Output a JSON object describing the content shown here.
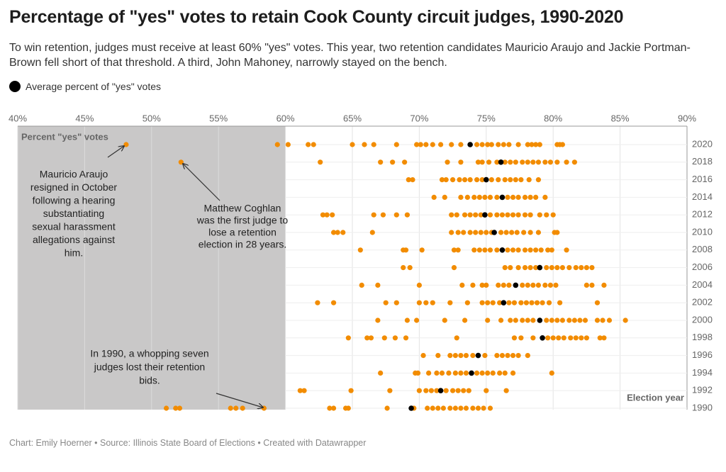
{
  "chart_data": {
    "type": "dot",
    "title": "Percentage of \"yes\" votes to retain Cook County circuit judges, 1990-2020",
    "subtitle": "To win retention, judges must receive at least 60% \"yes\" votes. This year, two retention candidates Mauricio Araujo and Jackie Portman-Brown fell short of that threshold. A third, John Mahoney, narrowly stayed on the bench.",
    "x_label": "Percent \"yes\" votes",
    "y_label": "Election year",
    "source": "Chart: Emily Hoerner • Source: Illinois State Board of Elections • Created with Datawrapper",
    "xlim": [
      40,
      90
    ],
    "xticks": [
      {
        "value": 40,
        "label": "40%"
      },
      {
        "value": 45,
        "label": "45%"
      },
      {
        "value": 50,
        "label": "50%"
      },
      {
        "value": 55,
        "label": "55%"
      },
      {
        "value": 60,
        "label": "60%"
      },
      {
        "value": 65,
        "label": "65%"
      },
      {
        "value": 70,
        "label": "70%"
      },
      {
        "value": 75,
        "label": "75%"
      },
      {
        "value": 80,
        "label": "80%"
      },
      {
        "value": 85,
        "label": "85%"
      },
      {
        "value": 90,
        "label": "90%"
      }
    ],
    "threshold_shading": [
      40,
      60
    ],
    "shade_color": "#c9c8c8",
    "grid": true,
    "legend": "top-left",
    "categories": [
      "2020",
      "2018",
      "2016",
      "2014",
      "2012",
      "2010",
      "2008",
      "2006",
      "2004",
      "2002",
      "2000",
      "1998",
      "1996",
      "1994",
      "1992",
      "1990"
    ],
    "series": [
      {
        "color": "#f28c00",
        "values": [
          [
            48.1,
            59.4,
            60.2,
            61.7,
            62.1,
            65.0,
            65.9,
            66.6,
            68.3,
            69.8,
            70.1,
            70.5,
            71.0,
            71.6,
            72.4,
            73.1,
            74.3,
            74.7,
            75.1,
            75.4,
            75.9,
            76.3,
            76.7,
            77.4,
            78.1,
            78.4,
            78.7,
            79.0,
            80.3,
            80.5,
            80.7
          ],
          [
            52.2,
            62.6,
            67.1,
            68.0,
            68.9,
            72.1,
            73.1,
            74.4,
            74.7,
            75.2,
            75.8,
            76.4,
            76.8,
            77.2,
            77.7,
            78.1,
            78.5,
            78.9,
            79.4,
            79.8,
            80.3,
            81.0,
            81.6
          ],
          [
            69.2,
            69.5,
            71.7,
            72.0,
            72.5,
            73.0,
            73.4,
            73.8,
            74.3,
            74.7,
            75.4,
            75.9,
            76.4,
            76.8,
            77.2,
            77.6,
            78.2,
            78.9
          ],
          [
            71.1,
            71.9,
            73.1,
            73.6,
            74.1,
            74.5,
            74.9,
            75.3,
            75.8,
            76.6,
            77.0,
            77.4,
            77.9,
            78.3,
            78.7,
            79.4
          ],
          [
            62.8,
            63.1,
            63.5,
            66.6,
            67.3,
            68.3,
            69.1,
            72.4,
            72.8,
            73.4,
            73.8,
            74.2,
            74.6,
            75.3,
            75.8,
            76.2,
            76.6,
            77.0,
            77.4,
            77.9,
            78.3,
            79.0,
            79.5,
            80.0
          ],
          [
            63.6,
            63.9,
            64.3,
            66.5,
            72.4,
            72.9,
            73.3,
            73.8,
            74.2,
            74.6,
            75.0,
            75.4,
            76.1,
            76.5,
            76.9,
            77.3,
            77.8,
            78.3,
            78.9,
            80.1,
            80.3
          ],
          [
            65.6,
            68.8,
            69.0,
            70.2,
            72.6,
            72.9,
            74.1,
            74.5,
            74.9,
            75.3,
            75.8,
            76.6,
            77.0,
            77.4,
            77.9,
            78.3,
            78.7,
            79.1,
            79.6,
            79.9,
            81.0
          ],
          [
            68.8,
            69.3,
            72.6,
            76.4,
            76.8,
            77.4,
            77.9,
            78.3,
            78.7,
            79.5,
            79.9,
            80.3,
            80.7,
            81.2,
            81.7,
            82.1,
            82.5,
            82.9
          ],
          [
            65.7,
            66.9,
            70.0,
            73.2,
            74.0,
            74.7,
            75.0,
            75.9,
            76.3,
            76.7,
            77.7,
            78.1,
            78.5,
            78.9,
            79.4,
            79.8,
            80.2,
            82.5,
            82.9,
            83.8
          ],
          [
            62.4,
            63.6,
            67.5,
            68.3,
            70.0,
            70.5,
            71.0,
            72.3,
            73.6,
            74.7,
            75.1,
            75.5,
            76.0,
            76.7,
            77.1,
            77.6,
            78.0,
            78.4,
            78.8,
            79.2,
            79.7,
            80.5,
            83.3
          ],
          [
            66.9,
            69.1,
            69.8,
            71.9,
            73.4,
            75.1,
            76.1,
            76.8,
            77.2,
            77.7,
            78.1,
            78.5,
            79.5,
            79.9,
            80.3,
            80.7,
            81.2,
            81.6,
            82.0,
            82.4,
            83.3,
            83.7,
            84.2,
            85.4
          ],
          [
            64.7,
            66.1,
            66.4,
            67.4,
            68.2,
            69.0,
            72.8,
            77.1,
            77.6,
            78.5,
            79.6,
            80.0,
            80.4,
            80.8,
            81.3,
            81.7,
            82.1,
            82.5,
            83.5,
            83.8
          ],
          [
            70.3,
            71.4,
            72.3,
            72.7,
            73.1,
            73.5,
            74.0,
            74.9,
            75.8,
            76.2,
            76.6,
            77.0,
            77.4,
            78.1
          ],
          [
            67.1,
            69.7,
            69.9,
            70.7,
            71.3,
            71.7,
            72.2,
            72.7,
            73.1,
            73.5,
            74.3,
            74.7,
            75.1,
            75.5,
            76.0,
            76.4,
            77.0,
            79.9
          ],
          [
            61.1,
            61.4,
            64.9,
            67.8,
            70.0,
            70.5,
            70.9,
            71.3,
            72.0,
            72.5,
            72.9,
            73.3,
            73.7,
            75.0,
            76.5
          ],
          [
            51.1,
            51.8,
            52.1,
            55.9,
            56.3,
            56.8,
            58.4,
            63.3,
            63.6,
            64.5,
            64.7,
            67.6,
            69.6,
            70.6,
            71.0,
            71.4,
            71.8,
            72.3,
            72.7,
            73.1,
            73.5,
            74.0,
            74.4,
            74.8,
            75.3
          ]
        ]
      },
      {
        "name": "Average percent of \"yes\" votes",
        "color": "#000000",
        "values": [
          73.8,
          76.1,
          75.0,
          76.2,
          74.9,
          75.6,
          76.2,
          79.0,
          77.2,
          76.3,
          79.0,
          79.2,
          74.4,
          73.9,
          71.6,
          69.4
        ]
      }
    ],
    "annotations": [
      {
        "lines": [
          "Mauricio Araujo",
          "resigned in October",
          "following a hearing",
          "substantiating",
          "sexual harassment",
          "allegations against",
          "him."
        ]
      },
      {
        "lines": [
          "Matthew Coghlan",
          "was the first judge to",
          "lose a retention",
          "election in 28 years."
        ]
      },
      {
        "lines": [
          "In 1990, a whopping seven",
          "judges lost their retention",
          "bids."
        ]
      }
    ]
  }
}
